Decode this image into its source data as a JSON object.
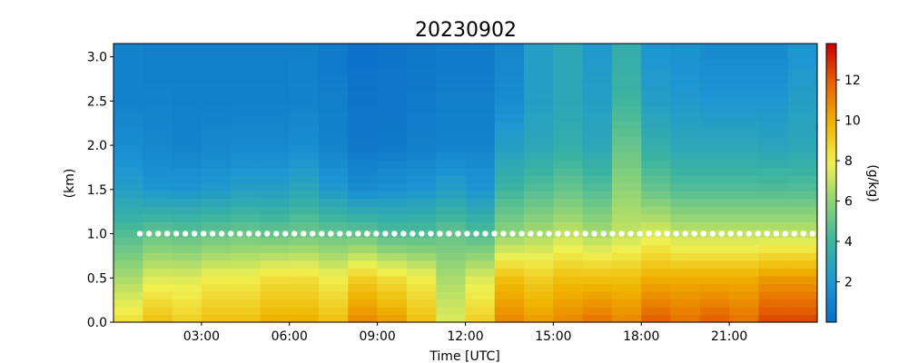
{
  "chart_data": {
    "type": "heatmap",
    "title": "20230902",
    "xlabel": "Time [UTC]",
    "ylabel": "(km)",
    "colorbar_label": "(g/kg)",
    "x_unit": "hours UTC",
    "xlim": [
      0,
      24
    ],
    "ylim": [
      0,
      3.15
    ],
    "x_ticks": [
      3,
      6,
      9,
      12,
      15,
      18,
      21
    ],
    "x_tick_labels": [
      "03:00",
      "06:00",
      "09:00",
      "12:00",
      "15:00",
      "18:00",
      "21:00"
    ],
    "y_ticks": [
      0.0,
      0.5,
      1.0,
      1.5,
      2.0,
      2.5,
      3.0
    ],
    "y_tick_labels": [
      "0.0",
      "0.5",
      "1.0",
      "1.5",
      "2.0",
      "2.5",
      "3.0"
    ],
    "colorbar_ticks": [
      2,
      4,
      6,
      8,
      10,
      12
    ],
    "colorbar_tick_labels": [
      "2",
      "4",
      "6",
      "8",
      "10",
      "12"
    ],
    "color_range": [
      0,
      13.8
    ],
    "colormap": [
      "#0a6ec8",
      "#1e96d2",
      "#3cb4a0",
      "#8cd278",
      "#f0f050",
      "#f0b400",
      "#e66400",
      "#c80000"
    ],
    "grid": false,
    "boundary_layer_marker": {
      "height_km": 1.0,
      "color": "#ffffff",
      "style": "dots"
    },
    "profile_times": [
      0.5,
      1.5,
      2.5,
      3.5,
      4.5,
      5.5,
      6.5,
      7.5,
      8.5,
      9.5,
      10.5,
      11.5,
      12.5,
      13.5,
      14.5,
      15.5,
      16.5,
      17.5,
      18.5,
      19.5,
      20.5,
      21.5,
      22.5,
      23.5
    ],
    "profile_heights_km": [
      0.0,
      0.5,
      1.0,
      1.5,
      2.0,
      2.5,
      3.0
    ],
    "mixing_ratio_g_per_kg": [
      [
        8.5,
        6.5,
        4.5,
        2.5,
        1.5,
        1.0,
        1.0
      ],
      [
        9.5,
        7.5,
        5.0,
        2.0,
        1.2,
        1.0,
        0.8
      ],
      [
        9.0,
        7.5,
        4.8,
        2.0,
        1.0,
        0.9,
        0.8
      ],
      [
        9.5,
        8.0,
        5.0,
        2.2,
        1.2,
        0.9,
        0.8
      ],
      [
        9.5,
        8.0,
        5.2,
        2.5,
        1.3,
        0.9,
        0.8
      ],
      [
        10.0,
        8.5,
        5.0,
        2.5,
        1.3,
        0.9,
        0.8
      ],
      [
        10.0,
        8.5,
        5.2,
        3.0,
        1.5,
        1.0,
        0.9
      ],
      [
        9.5,
        8.0,
        5.0,
        2.2,
        1.0,
        0.8,
        0.6
      ],
      [
        11.0,
        9.0,
        5.0,
        1.5,
        0.5,
        0.3,
        0.2
      ],
      [
        10.5,
        8.5,
        4.5,
        1.8,
        0.5,
        0.4,
        0.3
      ],
      [
        9.5,
        8.0,
        4.5,
        2.0,
        0.8,
        0.6,
        0.5
      ],
      [
        7.5,
        6.5,
        5.0,
        2.5,
        1.0,
        0.8,
        0.6
      ],
      [
        9.0,
        7.5,
        4.5,
        2.0,
        1.0,
        0.8,
        0.6
      ],
      [
        11.0,
        9.5,
        6.0,
        4.0,
        2.5,
        1.5,
        1.2
      ],
      [
        10.5,
        9.0,
        6.5,
        4.5,
        3.0,
        2.5,
        2.5
      ],
      [
        11.0,
        9.5,
        7.0,
        5.0,
        3.5,
        3.0,
        3.0
      ],
      [
        11.5,
        9.5,
        6.5,
        4.5,
        3.0,
        2.5,
        2.2
      ],
      [
        11.0,
        9.5,
        7.0,
        6.0,
        5.0,
        4.0,
        3.5
      ],
      [
        12.0,
        10.0,
        7.5,
        5.0,
        3.5,
        2.5,
        2.0
      ],
      [
        11.5,
        10.0,
        7.0,
        4.5,
        3.0,
        2.2,
        1.8
      ],
      [
        12.0,
        10.0,
        7.0,
        4.5,
        3.0,
        2.0,
        1.5
      ],
      [
        11.5,
        10.0,
        7.0,
        4.5,
        3.0,
        2.0,
        1.5
      ],
      [
        12.5,
        10.5,
        7.0,
        4.5,
        2.8,
        2.0,
        1.5
      ],
      [
        12.5,
        10.5,
        7.0,
        4.5,
        3.0,
        2.5,
        2.0
      ]
    ]
  }
}
